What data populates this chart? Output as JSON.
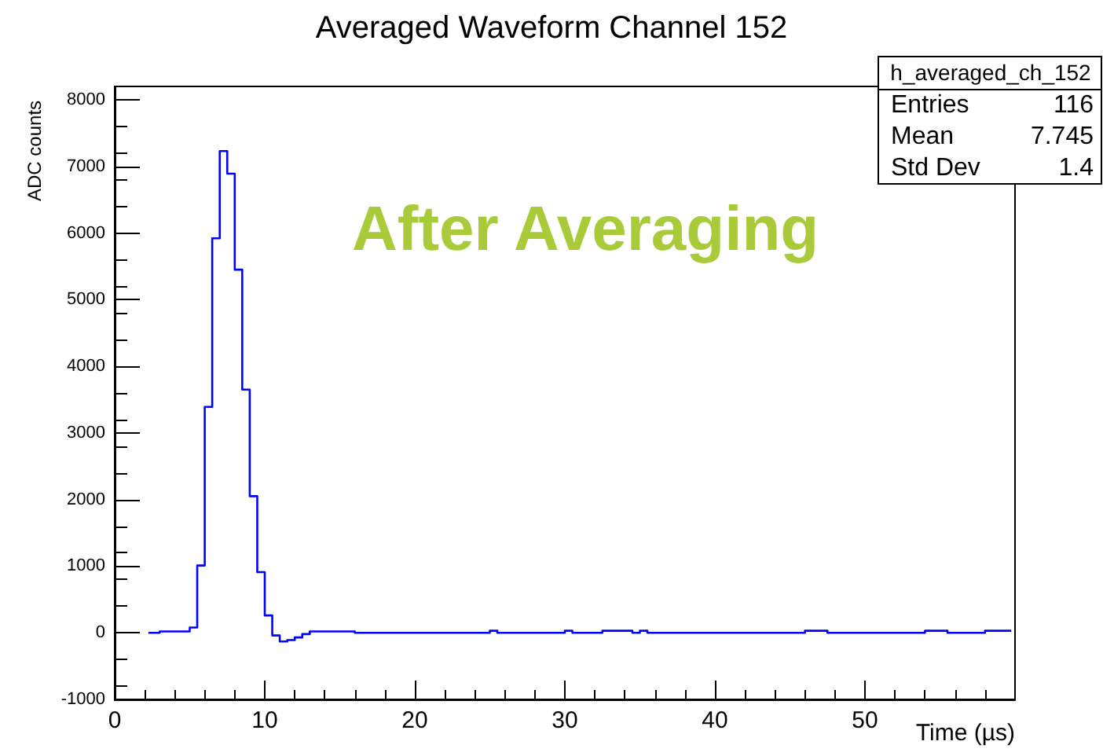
{
  "chart_data": {
    "type": "step",
    "title": "Averaged Waveform Channel 152",
    "xlabel": "Time (µs)",
    "ylabel": "ADC counts",
    "annotations": [
      "After Averaging",
      "h_averaged_ch_152",
      "Entries",
      "116",
      "Mean",
      "7.745",
      "Std Dev",
      "1.4"
    ],
    "x": [
      2.25,
      2.75,
      3.25,
      3.75,
      4.25,
      4.75,
      5.25,
      5.75,
      6.25,
      6.75,
      7.25,
      7.75,
      8.25,
      8.75,
      9.25,
      9.75,
      10.25,
      10.75,
      11.25,
      11.75,
      12.25,
      12.75,
      13.25,
      13.75,
      14.25,
      14.75,
      15.25,
      15.75,
      16.25,
      16.75,
      17.25,
      17.75,
      18.25,
      18.75,
      19.25,
      19.75,
      20.25,
      20.75,
      21.25,
      21.75,
      22.25,
      22.75,
      23.25,
      23.75,
      24.25,
      24.75,
      25.25,
      25.75,
      26.25,
      26.75,
      27.25,
      27.75,
      28.25,
      28.75,
      29.25,
      29.75,
      30.25,
      30.75,
      31.25,
      31.75,
      32.25,
      32.75,
      33.25,
      33.75,
      34.25,
      34.75,
      35.25,
      35.75,
      36.25,
      36.75,
      37.25,
      37.75,
      38.25,
      38.75,
      39.25,
      39.75,
      40.25,
      40.75,
      41.25,
      41.75,
      42.25,
      42.75,
      43.25,
      43.75,
      44.25,
      44.75,
      45.25,
      45.75,
      46.25,
      46.75,
      47.25,
      47.75,
      48.25,
      48.75,
      49.25,
      49.75,
      50.25,
      50.75,
      51.25,
      51.75,
      52.25,
      52.75,
      53.25,
      53.75,
      54.25,
      54.75,
      55.25,
      55.75,
      56.25,
      56.75,
      57.25,
      57.75,
      58.25,
      58.75,
      59.25,
      59.75
    ],
    "values": [
      0,
      0,
      20,
      20,
      20,
      20,
      80,
      1010,
      3390,
      5920,
      7230,
      6890,
      5450,
      3650,
      2050,
      910,
      260,
      -40,
      -130,
      -110,
      -70,
      -20,
      20,
      20,
      20,
      20,
      20,
      20,
      0,
      0,
      0,
      0,
      0,
      0,
      0,
      0,
      0,
      0,
      0,
      0,
      0,
      0,
      0,
      0,
      0,
      0,
      30,
      0,
      0,
      0,
      0,
      0,
      0,
      0,
      0,
      0,
      30,
      0,
      0,
      0,
      0,
      30,
      30,
      30,
      30,
      0,
      30,
      0,
      0,
      0,
      0,
      0,
      0,
      0,
      0,
      0,
      0,
      0,
      0,
      0,
      0,
      0,
      0,
      0,
      0,
      0,
      0,
      0,
      30,
      30,
      30,
      0,
      0,
      0,
      0,
      0,
      0,
      0,
      0,
      0,
      0,
      0,
      0,
      0,
      30,
      30,
      30,
      0,
      0,
      0,
      0,
      0,
      30,
      30,
      30,
      30
    ],
    "color": "#0000ff",
    "xlim": [
      0,
      60
    ],
    "xticks": [
      0,
      10,
      20,
      30,
      40,
      50
    ],
    "ylim": [
      -1000,
      8200
    ],
    "yticks": [
      -1000,
      0,
      1000,
      2000,
      3000,
      4000,
      5000,
      6000,
      7000,
      8000
    ],
    "grid": false
  }
}
